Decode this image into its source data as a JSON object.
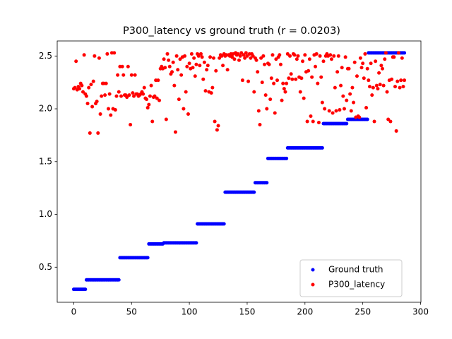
{
  "chart_data": {
    "type": "scatter",
    "title": "P300_latency vs ground truth (r = 0.0203)",
    "x": [
      0,
      1,
      2,
      3,
      4,
      5,
      6,
      7,
      8,
      9,
      10,
      11,
      12,
      13,
      14,
      15,
      16,
      17,
      18,
      19,
      20,
      21,
      22,
      23,
      24,
      25,
      26,
      27,
      28,
      29,
      30,
      31,
      32,
      33,
      34,
      35,
      36,
      37,
      38,
      39,
      40,
      41,
      42,
      43,
      44,
      45,
      46,
      47,
      48,
      49,
      50,
      51,
      52,
      53,
      54,
      55,
      56,
      57,
      58,
      59,
      60,
      61,
      62,
      63,
      64,
      65,
      66,
      67,
      68,
      69,
      70,
      71,
      72,
      73,
      74,
      75,
      76,
      77,
      78,
      79,
      80,
      81,
      82,
      83,
      84,
      85,
      86,
      87,
      88,
      89,
      90,
      91,
      92,
      93,
      94,
      95,
      96,
      97,
      98,
      99,
      100,
      101,
      102,
      103,
      104,
      105,
      106,
      107,
      108,
      109,
      110,
      111,
      112,
      113,
      114,
      115,
      116,
      117,
      118,
      119,
      120,
      121,
      122,
      123,
      124,
      125,
      126,
      127,
      128,
      129,
      130,
      131,
      132,
      133,
      134,
      135,
      136,
      137,
      138,
      139,
      140,
      141,
      142,
      143,
      144,
      145,
      146,
      147,
      148,
      149,
      150,
      151,
      152,
      153,
      154,
      155,
      156,
      157,
      158,
      159,
      160,
      161,
      162,
      163,
      164,
      165,
      166,
      167,
      168,
      169,
      170,
      171,
      172,
      173,
      174,
      175,
      176,
      177,
      178,
      179,
      180,
      181,
      182,
      183,
      184,
      185,
      186,
      187,
      188,
      189,
      190,
      191,
      192,
      193,
      194,
      195,
      196,
      197,
      198,
      199,
      200,
      201,
      202,
      203,
      204,
      205,
      206,
      207,
      208,
      209,
      210,
      211,
      212,
      213,
      214,
      215,
      216,
      217,
      218,
      219,
      220,
      221,
      222,
      223,
      224,
      225,
      226,
      227,
      228,
      229,
      230,
      231,
      232,
      233,
      234,
      235,
      236,
      237,
      238,
      239,
      240,
      241,
      242,
      243,
      244,
      245,
      246,
      247,
      248,
      249,
      250,
      251,
      252,
      253,
      254,
      255,
      256,
      257,
      258,
      259,
      260,
      261,
      262,
      263,
      264,
      265,
      266,
      267,
      268,
      269,
      270,
      271,
      272,
      273,
      274,
      275,
      276,
      277,
      278,
      279,
      280,
      281,
      282,
      283,
      284,
      285,
      286
    ],
    "series": [
      {
        "name": "Ground truth",
        "color": "#0000ff",
        "values": [
          0.29,
          0.29,
          0.29,
          0.29,
          0.29,
          0.29,
          0.29,
          0.29,
          0.29,
          0.29,
          0.29,
          0.38,
          0.38,
          0.38,
          0.38,
          0.38,
          0.38,
          0.38,
          0.38,
          0.38,
          0.38,
          0.38,
          0.38,
          0.38,
          0.38,
          0.38,
          0.38,
          0.38,
          0.38,
          0.38,
          0.38,
          0.38,
          0.38,
          0.38,
          0.38,
          0.38,
          0.38,
          0.38,
          0.38,
          0.38,
          0.59,
          0.59,
          0.59,
          0.59,
          0.59,
          0.59,
          0.59,
          0.59,
          0.59,
          0.59,
          0.59,
          0.59,
          0.59,
          0.59,
          0.59,
          0.59,
          0.59,
          0.59,
          0.59,
          0.59,
          0.59,
          0.59,
          0.59,
          0.59,
          0.59,
          0.72,
          0.72,
          0.72,
          0.72,
          0.72,
          0.72,
          0.72,
          0.72,
          0.72,
          0.72,
          0.72,
          0.72,
          0.72,
          0.73,
          0.73,
          0.73,
          0.73,
          0.73,
          0.73,
          0.73,
          0.73,
          0.73,
          0.73,
          0.73,
          0.73,
          0.73,
          0.73,
          0.73,
          0.73,
          0.73,
          0.73,
          0.73,
          0.73,
          0.73,
          0.73,
          0.73,
          0.73,
          0.73,
          0.73,
          0.73,
          0.73,
          0.73,
          0.91,
          0.91,
          0.91,
          0.91,
          0.91,
          0.91,
          0.91,
          0.91,
          0.91,
          0.91,
          0.91,
          0.91,
          0.91,
          0.91,
          0.91,
          0.91,
          0.91,
          0.91,
          0.91,
          0.91,
          0.91,
          0.91,
          0.91,
          0.91,
          1.21,
          1.21,
          1.21,
          1.21,
          1.21,
          1.21,
          1.21,
          1.21,
          1.21,
          1.21,
          1.21,
          1.21,
          1.21,
          1.21,
          1.21,
          1.21,
          1.21,
          1.21,
          1.21,
          1.21,
          1.21,
          1.21,
          1.21,
          1.21,
          1.21,
          1.21,
          1.3,
          1.3,
          1.3,
          1.3,
          1.3,
          1.3,
          1.3,
          1.3,
          1.3,
          1.3,
          1.3,
          1.53,
          1.53,
          1.53,
          1.53,
          1.53,
          1.53,
          1.53,
          1.53,
          1.53,
          1.53,
          1.53,
          1.53,
          1.53,
          1.53,
          1.53,
          1.53,
          1.53,
          1.63,
          1.63,
          1.63,
          1.63,
          1.63,
          1.63,
          1.63,
          1.63,
          1.63,
          1.63,
          1.63,
          1.63,
          1.63,
          1.63,
          1.63,
          1.63,
          1.63,
          1.63,
          1.63,
          1.63,
          1.63,
          1.63,
          1.63,
          1.63,
          1.63,
          1.63,
          1.63,
          1.63,
          1.63,
          1.63,
          1.63,
          1.86,
          1.86,
          1.86,
          1.86,
          1.86,
          1.86,
          1.86,
          1.86,
          1.86,
          1.86,
          1.86,
          1.86,
          1.86,
          1.86,
          1.86,
          1.86,
          1.86,
          1.86,
          1.86,
          1.86,
          1.86,
          1.9,
          1.9,
          1.9,
          1.9,
          1.9,
          1.9,
          1.9,
          1.9,
          1.9,
          1.9,
          1.9,
          1.9,
          1.9,
          1.9,
          1.9,
          1.9,
          1.9,
          1.9,
          2.53,
          2.53,
          2.53,
          2.53,
          2.53,
          2.53,
          2.53,
          2.53,
          2.53,
          2.53,
          2.53,
          2.53,
          2.53,
          2.53,
          2.53,
          2.53,
          2.53,
          2.53,
          2.53,
          2.53,
          2.53,
          2.53,
          2.53,
          2.53,
          2.53,
          2.53,
          2.53,
          2.53,
          2.53,
          2.53,
          2.53,
          2.53
        ]
      },
      {
        "name": "P300_latency",
        "color": "#ff0000",
        "values": [
          2.19,
          2.2,
          2.45,
          2.18,
          2.21,
          2.19,
          2.24,
          2.22,
          2.16,
          2.51,
          2.14,
          2.12,
          2.05,
          2.2,
          1.77,
          2.23,
          2.02,
          2.26,
          2.5,
          2.05,
          2.07,
          1.77,
          2.48,
          1.95,
          2.12,
          2.24,
          2.24,
          2.13,
          2.24,
          2.52,
          2.0,
          2.14,
          1.94,
          2.53,
          2.0,
          2.53,
          1.99,
          2.12,
          2.32,
          2.16,
          2.4,
          2.12,
          2.4,
          2.32,
          2.13,
          2.13,
          2.11,
          2.4,
          2.13,
          1.85,
          2.32,
          2.15,
          2.12,
          2.32,
          2.14,
          2.14,
          2.12,
          2.13,
          2.14,
          2.16,
          2.14,
          2.2,
          2.1,
          2.09,
          2.01,
          2.04,
          2.12,
          2.22,
          1.88,
          2.11,
          2.12,
          2.27,
          2.1,
          2.27,
          2.08,
          2.38,
          2.4,
          2.38,
          2.47,
          2.39,
          1.9,
          2.52,
          2.46,
          2.4,
          2.33,
          2.35,
          2.44,
          2.22,
          1.78,
          2.5,
          2.37,
          2.09,
          2.47,
          2.32,
          2.49,
          2.0,
          2.5,
          2.16,
          2.4,
          1.95,
          2.43,
          2.38,
          2.52,
          2.39,
          2.48,
          2.31,
          2.42,
          2.52,
          2.5,
          2.41,
          2.52,
          2.49,
          2.28,
          2.44,
          2.17,
          2.37,
          2.41,
          2.16,
          2.49,
          2.15,
          2.2,
          2.48,
          1.88,
          2.36,
          1.8,
          1.84,
          2.48,
          2.51,
          2.5,
          2.41,
          2.52,
          2.5,
          2.51,
          2.37,
          2.51,
          2.5,
          2.52,
          2.49,
          2.52,
          2.47,
          2.53,
          2.51,
          2.52,
          2.46,
          2.5,
          2.53,
          2.27,
          2.51,
          2.48,
          2.53,
          2.5,
          2.26,
          2.52,
          2.48,
          2.52,
          2.5,
          2.16,
          2.48,
          2.46,
          2.35,
          1.98,
          1.85,
          2.48,
          2.25,
          2.5,
          2.42,
          2.13,
          2.0,
          2.43,
          2.42,
          2.09,
          2.29,
          2.51,
          2.24,
          1.96,
          2.47,
          2.27,
          2.49,
          2.51,
          2.42,
          2.08,
          2.24,
          2.19,
          2.16,
          2.24,
          2.52,
          2.29,
          2.5,
          2.33,
          2.28,
          2.52,
          2.51,
          2.28,
          2.47,
          2.5,
          2.3,
          2.16,
          2.29,
          2.45,
          2.1,
          2.51,
          2.35,
          1.88,
          2.36,
          2.47,
          1.93,
          2.3,
          1.88,
          2.51,
          2.4,
          2.52,
          2.24,
          1.87,
          2.5,
          2.3,
          2.06,
          2.45,
          2.0,
          2.5,
          2.52,
          2.5,
          1.98,
          2.51,
          2.47,
          1.96,
          2.5,
          2.2,
          1.98,
          2.35,
          2.5,
          1.99,
          2.22,
          2.39,
          2.12,
          2.0,
          2.49,
          2.08,
          2.38,
          2.38,
          2.14,
          1.98,
          2.2,
          2.06,
          2.44,
          1.92,
          2.31,
          1.93,
          1.92,
          2.48,
          2.39,
          2.43,
          2.29,
          2.52,
          2.01,
          2.38,
          2.27,
          2.21,
          2.43,
          2.13,
          2.2,
          1.88,
          2.45,
          2.22,
          2.19,
          2.34,
          2.23,
          2.41,
          2.38,
          2.22,
          2.47,
          2.53,
          2.16,
          1.9,
          2.27,
          1.88,
          2.28,
          2.49,
          2.49,
          2.21,
          1.79,
          2.26,
          2.53,
          2.2,
          2.27,
          2.48,
          2.21,
          2.27
        ]
      }
    ],
    "xlim": [
      -14.3,
      300.3
    ],
    "xticks": [
      0,
      50,
      100,
      150,
      200,
      250,
      300
    ],
    "ylim": [
      0.1675,
      2.6425
    ],
    "yticks": [
      0.5,
      {
        "value": 1,
        "label": "1.0"
      },
      1.5,
      {
        "value": 2,
        "label": "2.0"
      },
      2.5
    ],
    "legend": "lower right"
  }
}
